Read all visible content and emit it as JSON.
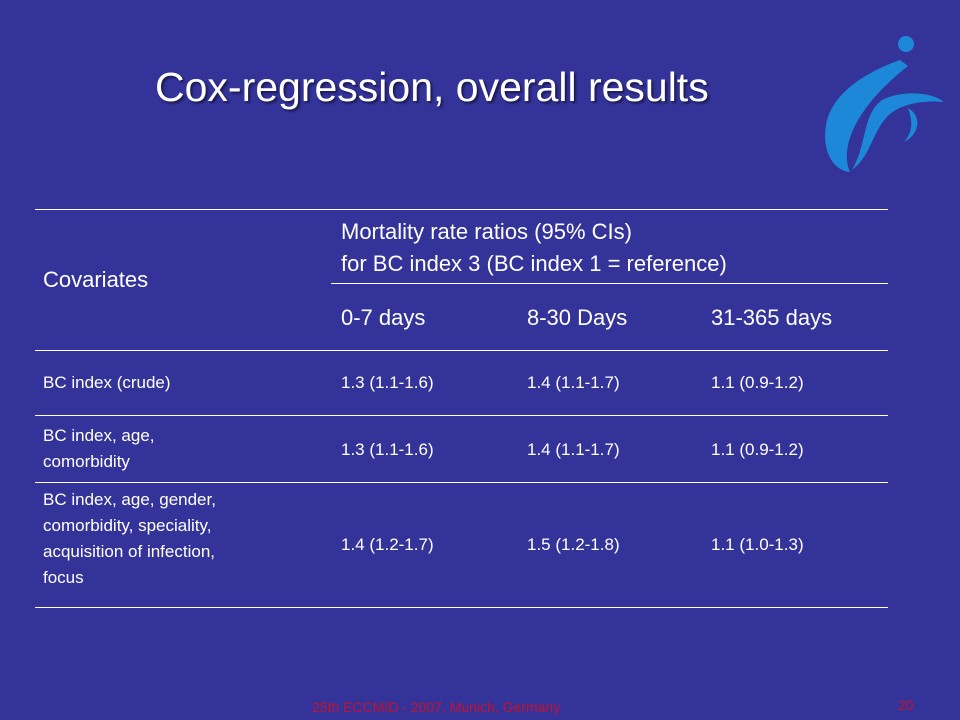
{
  "slide": {
    "title": "Cox-regression, overall results",
    "footer": "25th ECCMID - 2007, Munich, Germany",
    "page_number": "20"
  },
  "colors": {
    "background": "#333399",
    "text": "#ffffff",
    "footer_text": "#c8102e",
    "logo": "#1e88d8"
  },
  "logo_icon": "eccmid-swirl-logo",
  "table": {
    "covariates_header": "Covariates",
    "span_header_line1": "Mortality rate ratios (95% CIs)",
    "span_header_line2": "for BC index 3 (BC index 1 = reference)",
    "periods": [
      "0-7 days",
      "8-30 Days",
      "31-365 days"
    ],
    "rows": [
      {
        "label_lines": [
          "BC index (crude)"
        ],
        "values": [
          "1.3 (1.1-1.6)",
          "1.4 (1.1-1.7)",
          "1.1 (0.9-1.2)"
        ]
      },
      {
        "label_lines": [
          "BC index, age,",
          "comorbidity"
        ],
        "values": [
          "1.3 (1.1-1.6)",
          "1.4 (1.1-1.7)",
          "1.1 (0.9-1.2)"
        ]
      },
      {
        "label_lines": [
          "BC index, age, gender,",
          "comorbidity, speciality,",
          "acquisition of infection,",
          "focus"
        ],
        "values": [
          "1.4 (1.2-1.7)",
          "1.5 (1.2-1.8)",
          "1.1 (1.0-1.3)"
        ]
      }
    ]
  }
}
